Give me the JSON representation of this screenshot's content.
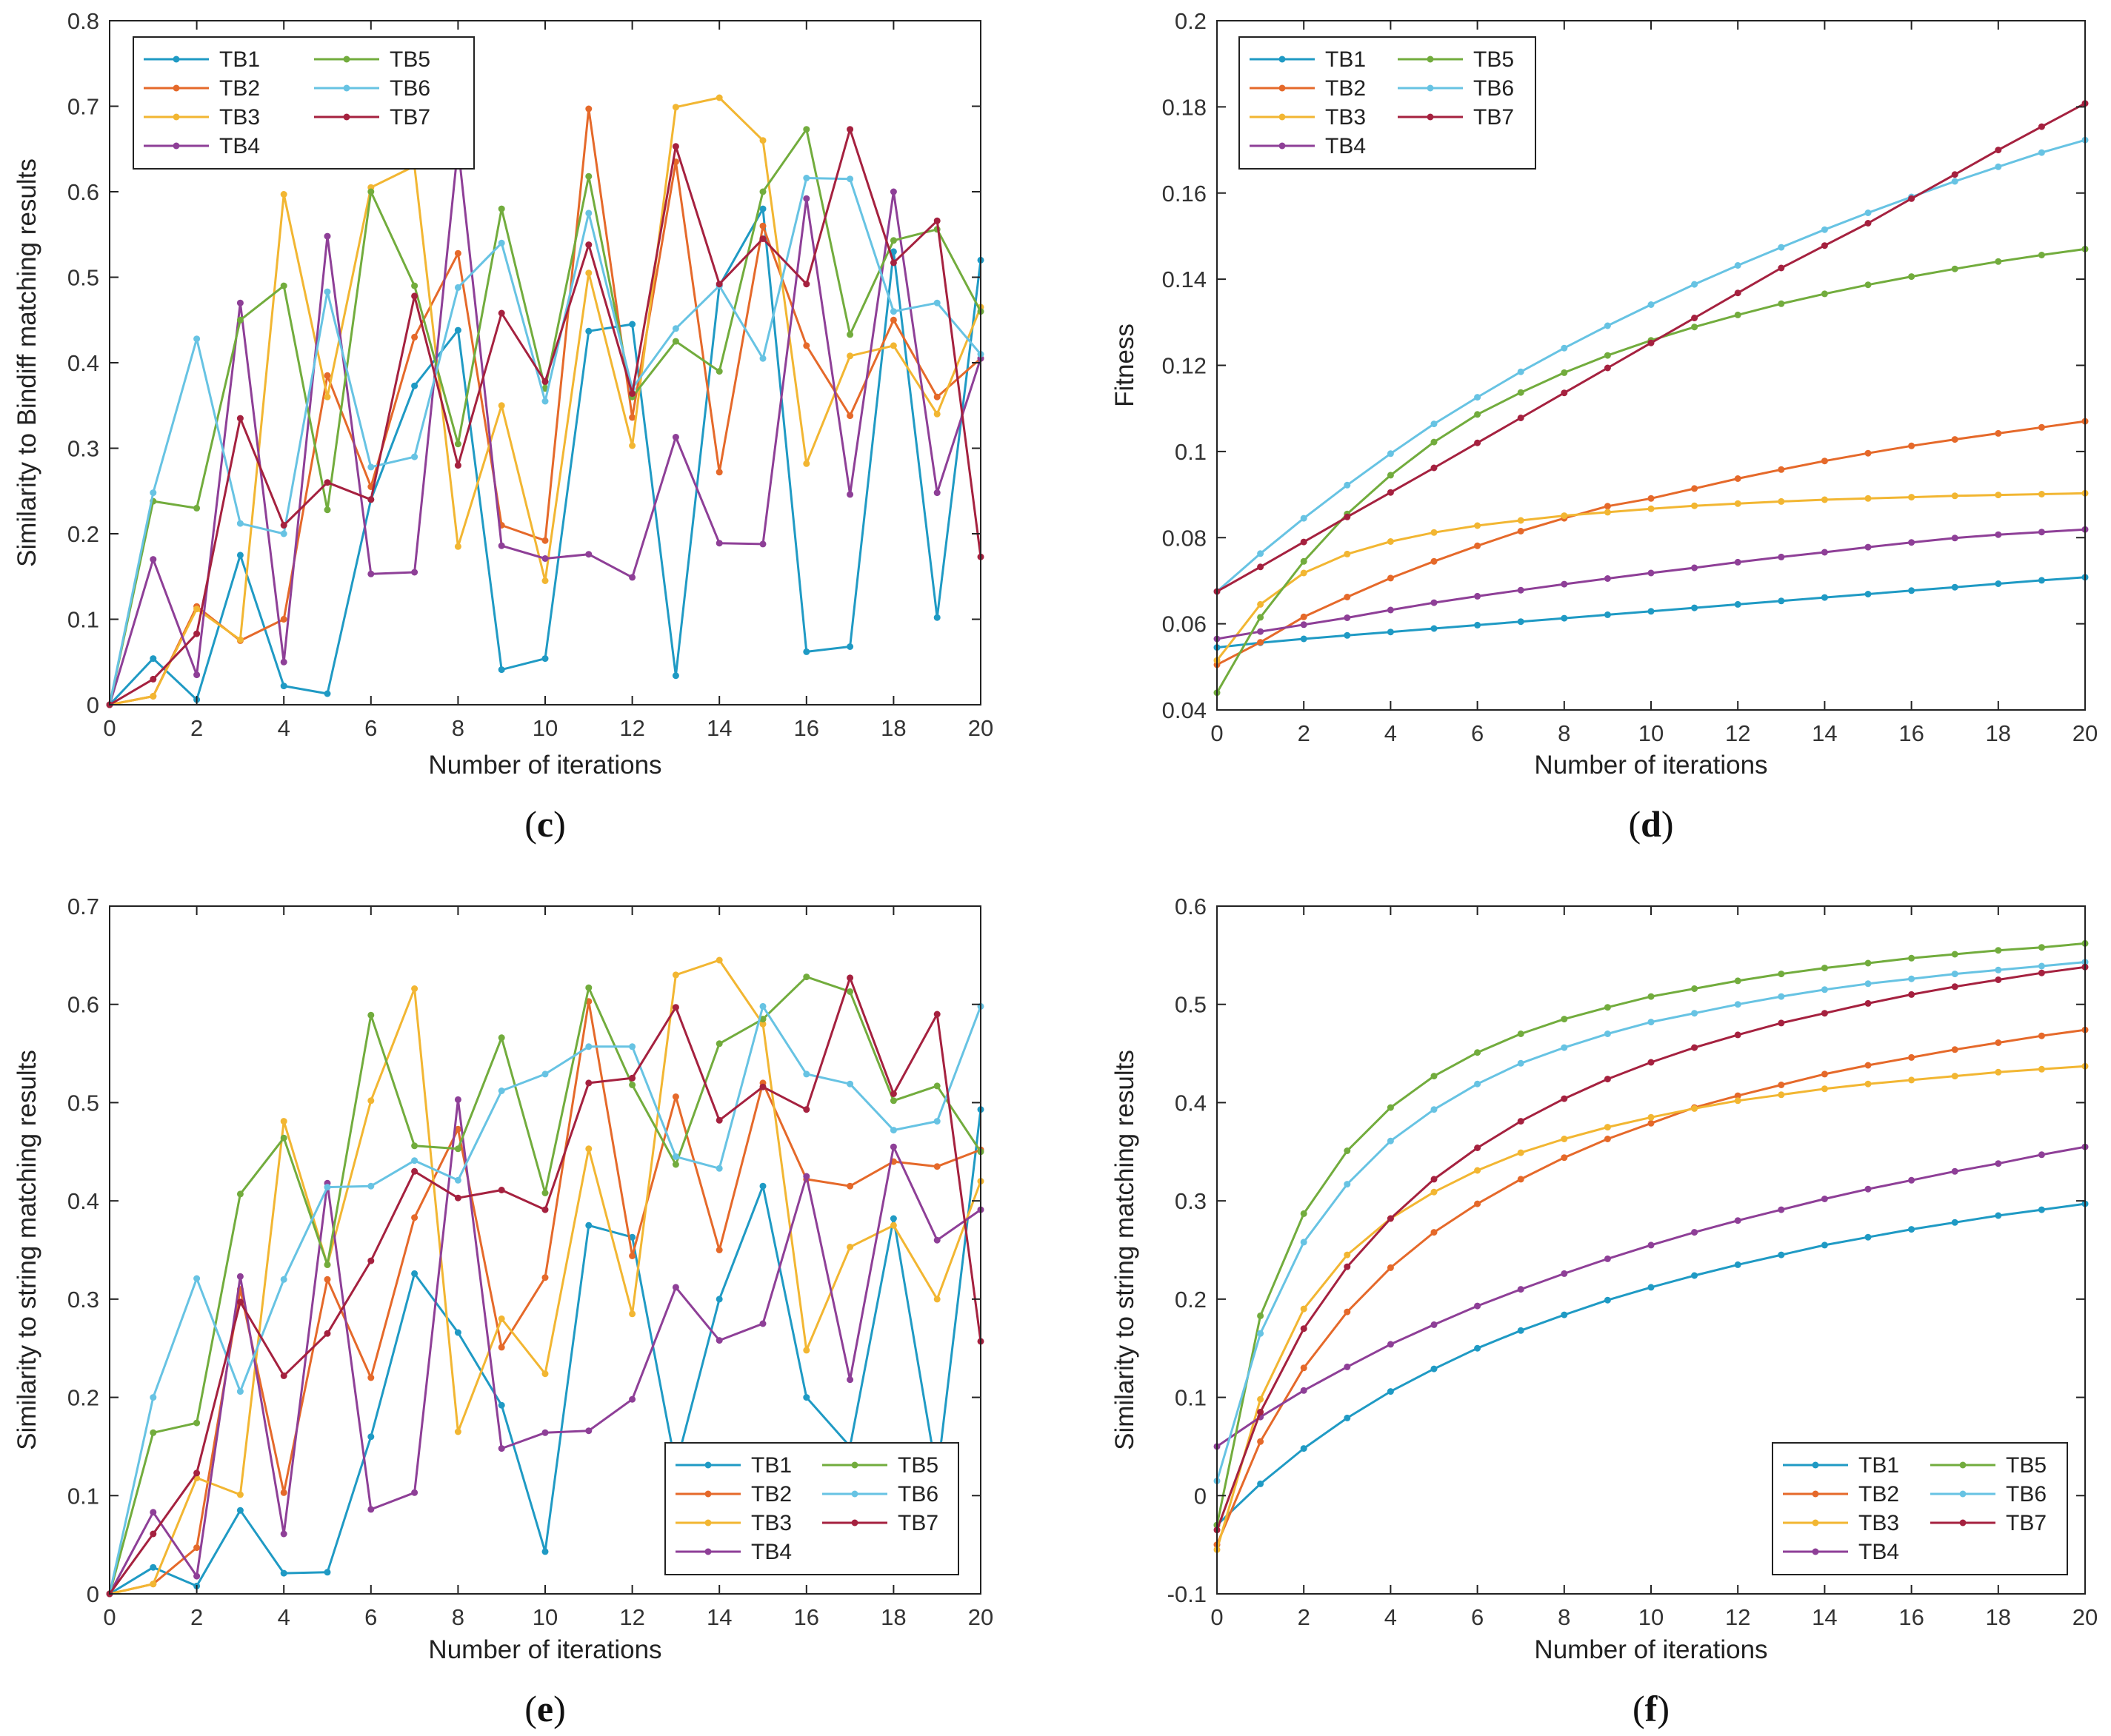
{
  "colors": {
    "TB1": "#1f9ac4",
    "TB2": "#e5692a",
    "TB3": "#f2b632",
    "TB4": "#8e3f97",
    "TB5": "#72ac3d",
    "TB6": "#67c3e3",
    "TB7": "#a5213f"
  },
  "chart_data": [
    {
      "id": "c",
      "panel_label": "c",
      "type": "line",
      "title": "",
      "xlabel": "Number of iterations",
      "ylabel": "Similarity to Bindiff matching results",
      "xlim": [
        0,
        20
      ],
      "ylim": [
        0,
        0.8
      ],
      "xticks": [
        0,
        2,
        4,
        6,
        8,
        10,
        12,
        14,
        16,
        18,
        20
      ],
      "yticks": [
        0,
        0.1,
        0.2,
        0.3,
        0.4,
        0.5,
        0.6,
        0.7,
        0.8
      ],
      "ytick_labels": [
        "0",
        "0.1",
        "0.2",
        "0.3",
        "0.4",
        "0.5",
        "0.6",
        "0.7",
        "0.8"
      ],
      "legend_position": "top-left",
      "x": [
        0,
        1,
        2,
        3,
        4,
        5,
        6,
        7,
        8,
        9,
        10,
        11,
        12,
        13,
        14,
        15,
        16,
        17,
        18,
        19,
        20
      ],
      "series": [
        {
          "name": "TB1",
          "values": [
            0,
            0.054,
            0.006,
            0.175,
            0.022,
            0.013,
            0.24,
            0.373,
            0.438,
            0.041,
            0.054,
            0.437,
            0.445,
            0.034,
            0.49,
            0.58,
            0.062,
            0.068,
            0.53,
            0.102,
            0.52
          ]
        },
        {
          "name": "TB2",
          "values": [
            0,
            0.01,
            0.115,
            0.075,
            0.1,
            0.385,
            0.255,
            0.43,
            0.528,
            0.21,
            0.192,
            0.697,
            0.336,
            0.635,
            0.272,
            0.56,
            0.42,
            0.338,
            0.45,
            0.36,
            0.405
          ]
        },
        {
          "name": "TB3",
          "values": [
            0,
            0.01,
            0.112,
            0.076,
            0.597,
            0.36,
            0.605,
            0.63,
            0.185,
            0.35,
            0.145,
            0.505,
            0.303,
            0.699,
            0.71,
            0.66,
            0.282,
            0.408,
            0.42,
            0.34,
            0.465
          ]
        },
        {
          "name": "TB4",
          "values": [
            0,
            0.17,
            0.035,
            0.47,
            0.05,
            0.548,
            0.153,
            0.155,
            0.653,
            0.186,
            0.171,
            0.176,
            0.149,
            0.313,
            0.189,
            0.188,
            0.592,
            0.246,
            0.6,
            0.248,
            0.405
          ]
        },
        {
          "name": "TB5",
          "values": [
            0,
            0.238,
            0.23,
            0.45,
            0.49,
            0.228,
            0.6,
            0.49,
            0.305,
            0.58,
            0.37,
            0.618,
            0.36,
            0.425,
            0.39,
            0.6,
            0.673,
            0.433,
            0.543,
            0.556,
            0.46
          ]
        },
        {
          "name": "TB6",
          "values": [
            0,
            0.248,
            0.428,
            0.212,
            0.2,
            0.483,
            0.278,
            0.29,
            0.488,
            0.54,
            0.355,
            0.575,
            0.37,
            0.44,
            0.49,
            0.405,
            0.616,
            0.615,
            0.46,
            0.47,
            0.41
          ]
        },
        {
          "name": "TB7",
          "values": [
            0,
            0.03,
            0.083,
            0.335,
            0.21,
            0.26,
            0.24,
            0.478,
            0.28,
            0.458,
            0.378,
            0.538,
            0.364,
            0.653,
            0.492,
            0.545,
            0.492,
            0.673,
            0.517,
            0.566,
            0.173
          ]
        }
      ]
    },
    {
      "id": "d",
      "panel_label": "d",
      "type": "line",
      "title": "",
      "xlabel": "Number of iterations",
      "ylabel": "Fitness",
      "xlim": [
        0,
        20
      ],
      "ylim": [
        0.04,
        0.2
      ],
      "xticks": [
        0,
        2,
        4,
        6,
        8,
        10,
        12,
        14,
        16,
        18,
        20
      ],
      "yticks": [
        0.04,
        0.06,
        0.08,
        0.1,
        0.12,
        0.14,
        0.16,
        0.18,
        0.2
      ],
      "ytick_labels": [
        "0.04",
        "0.06",
        "0.08",
        "0.1",
        "0.12",
        "0.14",
        "0.16",
        "0.18",
        "0.2"
      ],
      "legend_position": "top-left",
      "x": [
        0,
        1,
        2,
        3,
        4,
        5,
        6,
        7,
        8,
        9,
        10,
        11,
        12,
        13,
        14,
        15,
        16,
        17,
        18,
        19,
        20
      ],
      "series": [
        {
          "name": "TB1",
          "values": [
            0.0545,
            0.0556,
            0.0565,
            0.0573,
            0.0581,
            0.0589,
            0.0597,
            0.0605,
            0.0613,
            0.0621,
            0.0629,
            0.0637,
            0.0645,
            0.0653,
            0.0661,
            0.0669,
            0.0677,
            0.0685,
            0.0693,
            0.0701,
            0.0708
          ]
        },
        {
          "name": "TB2",
          "values": [
            0.0505,
            0.0557,
            0.0616,
            0.0662,
            0.0706,
            0.0745,
            0.0781,
            0.0815,
            0.0845,
            0.0873,
            0.0891,
            0.0914,
            0.0937,
            0.0958,
            0.0978,
            0.0996,
            0.1013,
            0.1028,
            0.1042,
            0.1056,
            0.107
          ]
        },
        {
          "name": "TB3",
          "values": [
            0.0515,
            0.0645,
            0.0718,
            0.0762,
            0.0791,
            0.0812,
            0.0828,
            0.084,
            0.0851,
            0.0859,
            0.0867,
            0.0874,
            0.0879,
            0.0884,
            0.0888,
            0.0891,
            0.0894,
            0.0897,
            0.0899,
            0.0901,
            0.0903
          ]
        },
        {
          "name": "TB4",
          "values": [
            0.0565,
            0.0582,
            0.0598,
            0.0614,
            0.0632,
            0.0649,
            0.0664,
            0.0678,
            0.0692,
            0.0705,
            0.0718,
            0.073,
            0.0743,
            0.0755,
            0.0766,
            0.0778,
            0.0789,
            0.0799,
            0.0807,
            0.0813,
            0.0819
          ]
        },
        {
          "name": "TB5",
          "values": [
            0.044,
            0.0615,
            0.0745,
            0.0855,
            0.0945,
            0.1022,
            0.1086,
            0.1137,
            0.1183,
            0.1223,
            0.1258,
            0.1289,
            0.1317,
            0.1343,
            0.1366,
            0.1387,
            0.1406,
            0.1424,
            0.1441,
            0.1456,
            0.147
          ]
        },
        {
          "name": "TB6",
          "values": [
            0.0675,
            0.0763,
            0.0845,
            0.0922,
            0.0995,
            0.1064,
            0.1126,
            0.1185,
            0.124,
            0.1292,
            0.1341,
            0.1388,
            0.1432,
            0.1474,
            0.1515,
            0.1554,
            0.1591,
            0.1627,
            0.1661,
            0.1694,
            0.1723
          ]
        },
        {
          "name": "TB7",
          "values": [
            0.0675,
            0.0732,
            0.079,
            0.0848,
            0.0905,
            0.0962,
            0.102,
            0.1078,
            0.1136,
            0.1194,
            0.1252,
            0.131,
            0.1368,
            0.1426,
            0.1478,
            0.153,
            0.1587,
            0.1643,
            0.17,
            0.1754,
            0.1808
          ]
        }
      ]
    },
    {
      "id": "e",
      "panel_label": "e",
      "type": "line",
      "title": "",
      "xlabel": "Number of iterations",
      "ylabel": "Similarity to string matching results",
      "xlim": [
        0,
        20
      ],
      "ylim": [
        0,
        0.7
      ],
      "xticks": [
        0,
        2,
        4,
        6,
        8,
        10,
        12,
        14,
        16,
        18,
        20
      ],
      "yticks": [
        0,
        0.1,
        0.2,
        0.3,
        0.4,
        0.5,
        0.6,
        0.7
      ],
      "ytick_labels": [
        "0",
        "0.1",
        "0.2",
        "0.3",
        "0.4",
        "0.5",
        "0.6",
        "0.7"
      ],
      "legend_position": "bottom-right",
      "x": [
        0,
        1,
        2,
        3,
        4,
        5,
        6,
        7,
        8,
        9,
        10,
        11,
        12,
        13,
        14,
        15,
        16,
        17,
        18,
        19,
        20
      ],
      "series": [
        {
          "name": "TB1",
          "values": [
            0,
            0.027,
            0.008,
            0.085,
            0.021,
            0.022,
            0.16,
            0.326,
            0.266,
            0.192,
            0.043,
            0.375,
            0.363,
            0.13,
            0.3,
            0.415,
            0.2,
            0.15,
            0.382,
            0.12,
            0.493
          ]
        },
        {
          "name": "TB2",
          "values": [
            0,
            0.01,
            0.047,
            0.31,
            0.103,
            0.32,
            0.22,
            0.383,
            0.473,
            0.251,
            0.322,
            0.603,
            0.344,
            0.506,
            0.35,
            0.52,
            0.422,
            0.415,
            0.44,
            0.435,
            0.452
          ]
        },
        {
          "name": "TB3",
          "values": [
            0,
            0.01,
            0.118,
            0.101,
            0.481,
            0.335,
            0.502,
            0.616,
            0.165,
            0.28,
            0.224,
            0.453,
            0.285,
            0.63,
            0.645,
            0.58,
            0.248,
            0.353,
            0.375,
            0.3,
            0.42
          ]
        },
        {
          "name": "TB4",
          "values": [
            0,
            0.083,
            0.018,
            0.323,
            0.061,
            0.418,
            0.086,
            0.103,
            0.503,
            0.148,
            0.164,
            0.166,
            0.198,
            0.312,
            0.258,
            0.275,
            0.425,
            0.218,
            0.455,
            0.36,
            0.391
          ]
        },
        {
          "name": "TB5",
          "values": [
            0,
            0.164,
            0.174,
            0.407,
            0.464,
            0.335,
            0.589,
            0.456,
            0.453,
            0.566,
            0.408,
            0.617,
            0.518,
            0.437,
            0.56,
            0.585,
            0.628,
            0.613,
            0.502,
            0.517,
            0.45
          ]
        },
        {
          "name": "TB6",
          "values": [
            0,
            0.2,
            0.321,
            0.206,
            0.32,
            0.414,
            0.415,
            0.441,
            0.421,
            0.512,
            0.529,
            0.557,
            0.557,
            0.445,
            0.433,
            0.598,
            0.529,
            0.519,
            0.472,
            0.481,
            0.598
          ]
        },
        {
          "name": "TB7",
          "values": [
            0,
            0.061,
            0.123,
            0.297,
            0.222,
            0.265,
            0.339,
            0.43,
            0.403,
            0.411,
            0.391,
            0.52,
            0.525,
            0.597,
            0.482,
            0.516,
            0.493,
            0.627,
            0.509,
            0.59,
            0.257
          ]
        }
      ]
    },
    {
      "id": "f",
      "panel_label": "f",
      "type": "line",
      "title": "",
      "xlabel": "Number of iterations",
      "ylabel": "Similarity to string matching results",
      "xlim": [
        0,
        20
      ],
      "ylim": [
        -0.1,
        0.6
      ],
      "xticks": [
        0,
        2,
        4,
        6,
        8,
        10,
        12,
        14,
        16,
        18,
        20
      ],
      "yticks": [
        -0.1,
        0,
        0.1,
        0.2,
        0.3,
        0.4,
        0.5,
        0.6
      ],
      "ytick_labels": [
        "-0.1",
        "0",
        "0.1",
        "0.2",
        "0.3",
        "0.4",
        "0.5",
        "0.6"
      ],
      "legend_position": "bottom-right",
      "x": [
        0,
        1,
        2,
        3,
        4,
        5,
        6,
        7,
        8,
        9,
        10,
        11,
        12,
        13,
        14,
        15,
        16,
        17,
        18,
        19,
        20
      ],
      "series": [
        {
          "name": "TB1",
          "values": [
            -0.03,
            0.012,
            0.048,
            0.079,
            0.106,
            0.129,
            0.15,
            0.168,
            0.184,
            0.199,
            0.212,
            0.224,
            0.235,
            0.245,
            0.255,
            0.263,
            0.271,
            0.278,
            0.285,
            0.291,
            0.297
          ]
        },
        {
          "name": "TB2",
          "values": [
            -0.05,
            0.055,
            0.13,
            0.187,
            0.232,
            0.268,
            0.297,
            0.322,
            0.344,
            0.363,
            0.379,
            0.395,
            0.407,
            0.418,
            0.429,
            0.438,
            0.446,
            0.454,
            0.461,
            0.468,
            0.474
          ]
        },
        {
          "name": "TB3",
          "values": [
            -0.055,
            0.098,
            0.19,
            0.245,
            0.282,
            0.309,
            0.331,
            0.349,
            0.363,
            0.375,
            0.385,
            0.394,
            0.402,
            0.408,
            0.414,
            0.419,
            0.423,
            0.427,
            0.431,
            0.434,
            0.437
          ]
        },
        {
          "name": "TB4",
          "values": [
            0.05,
            0.08,
            0.107,
            0.131,
            0.154,
            0.174,
            0.193,
            0.21,
            0.226,
            0.241,
            0.255,
            0.268,
            0.28,
            0.291,
            0.302,
            0.312,
            0.321,
            0.33,
            0.338,
            0.347,
            0.355
          ]
        },
        {
          "name": "TB5",
          "values": [
            -0.03,
            0.183,
            0.287,
            0.351,
            0.395,
            0.427,
            0.451,
            0.47,
            0.485,
            0.497,
            0.508,
            0.516,
            0.524,
            0.531,
            0.537,
            0.542,
            0.547,
            0.551,
            0.555,
            0.558,
            0.562
          ]
        },
        {
          "name": "TB6",
          "values": [
            0.015,
            0.165,
            0.258,
            0.317,
            0.361,
            0.393,
            0.419,
            0.44,
            0.456,
            0.47,
            0.482,
            0.491,
            0.5,
            0.508,
            0.515,
            0.521,
            0.526,
            0.531,
            0.535,
            0.539,
            0.543
          ]
        },
        {
          "name": "TB7",
          "values": [
            -0.035,
            0.085,
            0.17,
            0.233,
            0.282,
            0.322,
            0.354,
            0.381,
            0.404,
            0.424,
            0.441,
            0.456,
            0.469,
            0.481,
            0.491,
            0.501,
            0.51,
            0.518,
            0.525,
            0.532,
            0.538
          ]
        }
      ]
    }
  ]
}
